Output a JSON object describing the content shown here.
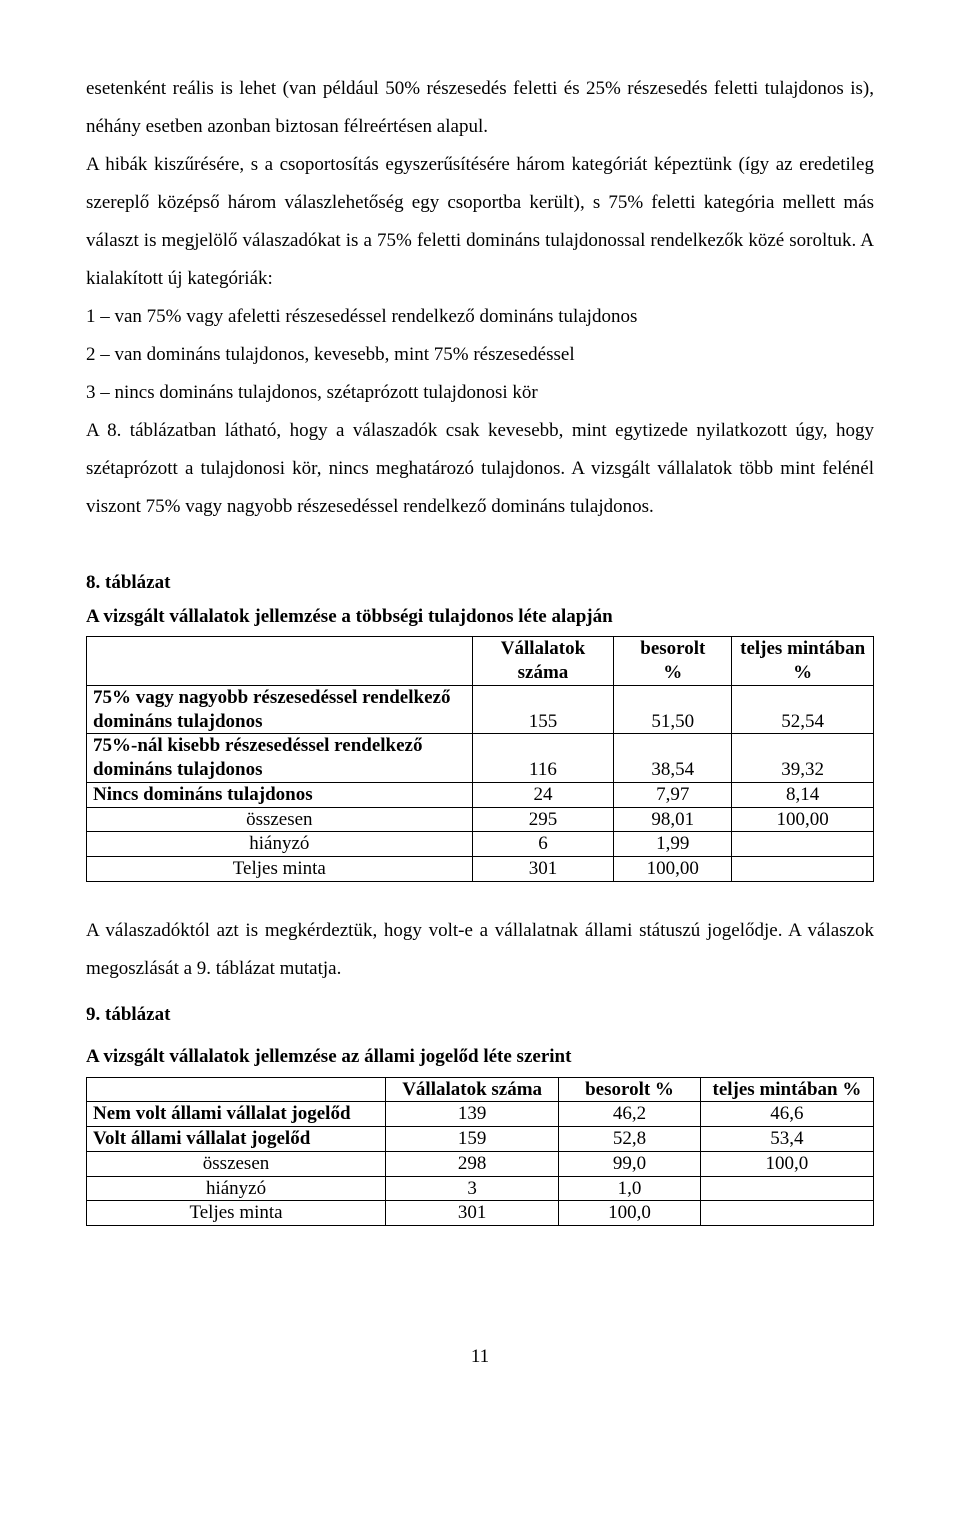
{
  "paragraphs": {
    "p1": "esetenként reális is lehet (van például 50% részesedés feletti és 25% részesedés feletti tulajdonos is), néhány esetben azonban biztosan félreértésen alapul.",
    "p2": "A hibák kiszűrésére, s a csoportosítás egyszerűsítésére három kategóriát képeztünk (így az eredetileg szereplő középső három válaszlehetőség egy csoportba került), s 75% feletti kategória mellett más választ is megjelölő válaszadókat is a 75% feletti domináns tulajdonossal rendelkezők közé soroltuk. A kialakított új kategóriák:",
    "li1": "1 – van 75% vagy afeletti részesedéssel rendelkező domináns tulajdonos",
    "li2": "2 – van domináns tulajdonos, kevesebb, mint 75% részesedéssel",
    "li3": "3 – nincs domináns tulajdonos, szétaprózott tulajdonosi kör",
    "p3": "A 8. táblázatban látható, hogy a válaszadók csak kevesebb, mint egytizede nyilatkozott úgy, hogy szétaprózott a tulajdonosi kör, nincs meghatározó tulajdonos. A vizsgált vállalatok több mint felénél viszont 75% vagy nagyobb részesedéssel rendelkező domináns tulajdonos.",
    "t8_label": "8. táblázat",
    "t8_title": "A vizsgált vállalatok jellemzése a többségi tulajdonos léte alapján",
    "p4": "A válaszadóktól azt is megkérdeztük, hogy volt-e a vállalatnak állami státuszú jogelődje. A válaszok megoszlását a 9. táblázat mutatja.",
    "t9_label": "9. táblázat",
    "t9_title": "A vizsgált vállalatok jellemzése az állami jogelőd léte szerint"
  },
  "table8": {
    "headers": {
      "col1": "",
      "col2": "Vállalatok száma",
      "col3_top": "besorolt",
      "col3_bot": "%",
      "col4_top": "teljes mintában",
      "col4_bot": "%"
    },
    "rows": [
      {
        "label_line1": "75% vagy nagyobb részesedéssel rendelkező",
        "label_line2": "domináns tulajdonos",
        "c2": "155",
        "c3": "51,50",
        "c4": "52,54",
        "bold": true
      },
      {
        "label_line1": "75%-nál kisebb részesedéssel rendelkező",
        "label_line2": "domináns tulajdonos",
        "c2": "116",
        "c3": "38,54",
        "c4": "39,32",
        "bold": true
      },
      {
        "label": "Nincs domináns tulajdonos",
        "c2": "24",
        "c3": "7,97",
        "c4": "8,14",
        "bold": true
      },
      {
        "label": "összesen",
        "c2": "295",
        "c3": "98,01",
        "c4": "100,00",
        "align": "center"
      },
      {
        "label": "hiányzó",
        "c2": "6",
        "c3": "1,99",
        "c4": "",
        "align": "center"
      },
      {
        "label": "Teljes minta",
        "c2": "301",
        "c3": "100,00",
        "c4": "",
        "align": "center"
      }
    ],
    "col_widths": [
      "49%",
      "18%",
      "15%",
      "18%"
    ]
  },
  "table9": {
    "headers": {
      "col1": "",
      "col2": "Vállalatok száma",
      "col3": "besorolt %",
      "col4": "teljes mintában %"
    },
    "rows": [
      {
        "label": "Nem volt állami vállalat jogelőd",
        "c2": "139",
        "c3": "46,2",
        "c4": "46,6",
        "bold": true
      },
      {
        "label": "Volt állami vállalat jogelőd",
        "c2": "159",
        "c3": "52,8",
        "c4": "53,4",
        "bold": true
      },
      {
        "label": "összesen",
        "c2": "298",
        "c3": "99,0",
        "c4": "100,0",
        "align": "center"
      },
      {
        "label": "hiányzó",
        "c2": "3",
        "c3": "1,0",
        "c4": "",
        "align": "center"
      },
      {
        "label": "Teljes minta",
        "c2": "301",
        "c3": "100,0",
        "c4": "",
        "align": "center"
      }
    ],
    "col_widths": [
      "38%",
      "22%",
      "18%",
      "22%"
    ]
  },
  "page_number": "11"
}
